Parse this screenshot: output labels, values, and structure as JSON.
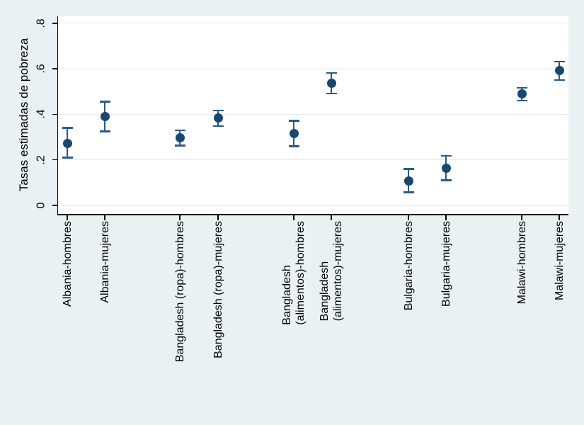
{
  "chart_data": {
    "type": "scatter",
    "title": "",
    "xlabel": "",
    "ylabel": "Tasas estimadas de pobreza",
    "ylim": [
      0,
      0.8
    ],
    "yticks": [
      0,
      0.2,
      0.4,
      0.6,
      0.8
    ],
    "ytick_labels": [
      "0",
      ".2",
      ".4",
      ".6",
      ".8"
    ],
    "grid": true,
    "legend": "none",
    "marker_style": "filled-circle-with-capped-confidence-interval",
    "categories": [
      "Albania-hombres",
      "Albania-mujeres",
      "Bangladesh (ropa)-hombres",
      "Bangladesh (ropa)-mujeres",
      "Bangladesh\n(alimentos)-hombres",
      "Bangladesh\n(alimentos)-mujeres",
      "Bulgaria-hombres",
      "Bulgaria-mujeres",
      "Malawi-hombres",
      "Malawi-mujeres"
    ],
    "series": [
      {
        "name": "Tasa estimada de pobreza",
        "values": [
          0.273,
          0.39,
          0.296,
          0.383,
          0.316,
          0.537,
          0.108,
          0.164,
          0.49,
          0.591
        ],
        "ci_low": [
          0.21,
          0.325,
          0.263,
          0.349,
          0.26,
          0.492,
          0.057,
          0.11,
          0.461,
          0.551
        ],
        "ci_high": [
          0.34,
          0.455,
          0.329,
          0.417,
          0.372,
          0.581,
          0.16,
          0.217,
          0.517,
          0.631
        ]
      }
    ],
    "colors": {
      "marker": "#1a476f",
      "error_bar": "#2a5a87",
      "background": "#eaf1f3",
      "plot_background": "#ffffff",
      "gridline": "#e2ecf0",
      "axis": "#000000"
    }
  }
}
